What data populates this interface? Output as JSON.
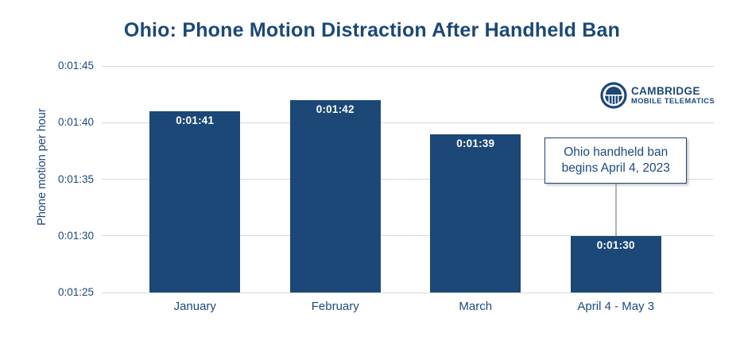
{
  "title": "Ohio: Phone Motion Distraction After Handheld Ban",
  "logo": {
    "line1": "CAMBRIDGE",
    "line2": "MOBILE TELEMATICS",
    "icon": "rotunda-icon",
    "color": "#1b4876"
  },
  "chart_data": {
    "type": "bar",
    "title": "Ohio: Phone Motion Distraction After Handheld Ban",
    "xlabel": "",
    "ylabel": "Phone motion per hour",
    "categories": [
      "January",
      "February",
      "March",
      "April 4 - May 3"
    ],
    "values_seconds": [
      101,
      102,
      99,
      90
    ],
    "bar_labels": [
      "0:01:41",
      "0:01:42",
      "0:01:39",
      "0:01:30"
    ],
    "ytick_labels": [
      "0:01:45",
      "0:01:40",
      "0:01:35",
      "0:01:30",
      "0:01:25"
    ],
    "ytick_seconds": [
      105,
      100,
      95,
      90,
      85
    ],
    "ylim_seconds": [
      85,
      105
    ],
    "grid": true,
    "legend": false,
    "bar_color": "#1b4876",
    "grid_color": "#d9d9d9",
    "value_label_color": "#ffffff",
    "text_color": "#1c4a7e",
    "annotation": {
      "text": "Ohio handheld ban begins April 4, 2023",
      "target_category": "April 4 - May 3"
    }
  }
}
